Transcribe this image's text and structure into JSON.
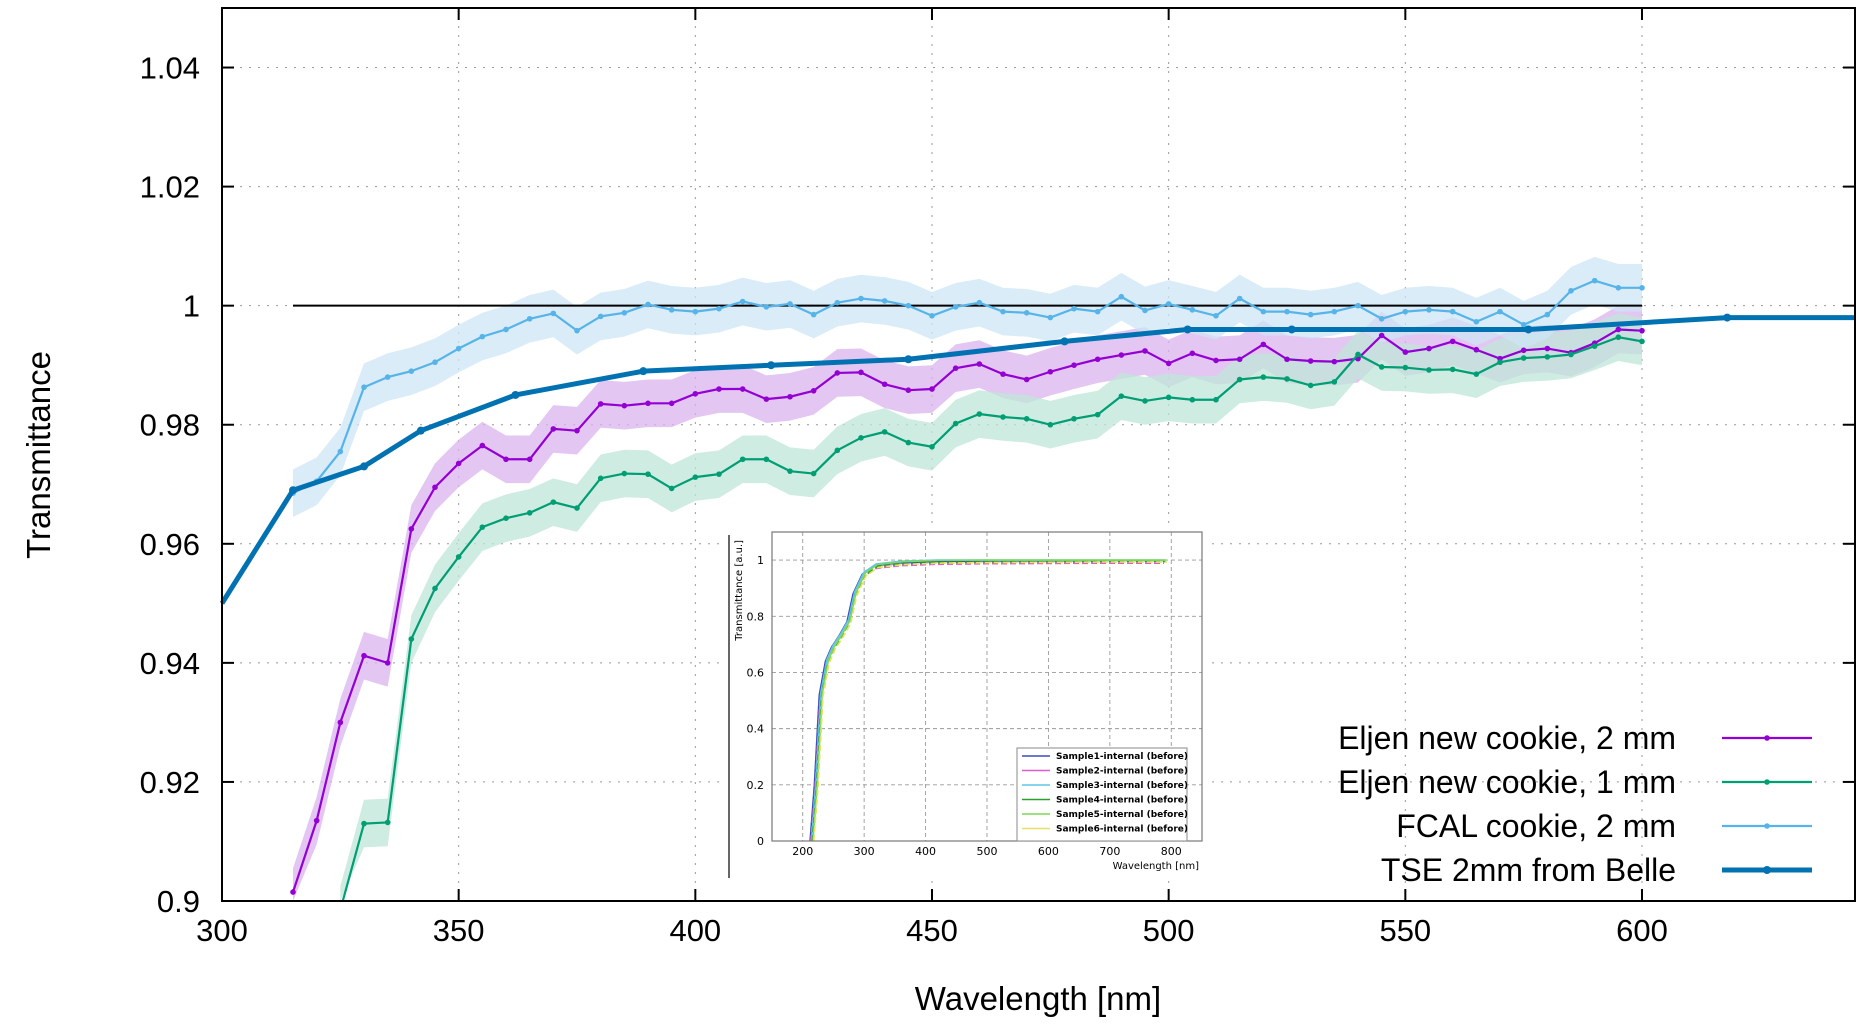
{
  "chart_data": [
    {
      "type": "line",
      "title": "",
      "xlabel": "Wavelength [nm]",
      "ylabel": "Transmittance",
      "xlim": [
        300,
        645
      ],
      "ylim": [
        0.9,
        1.05
      ],
      "x_ticks": [
        300,
        350,
        400,
        450,
        500,
        550,
        600
      ],
      "x_tick_labels": [
        "300",
        "350",
        "400",
        "450",
        "500",
        "550",
        "600"
      ],
      "y_ticks": [
        0.9,
        0.92,
        0.94,
        0.96,
        0.98,
        1.0,
        1.02,
        1.04
      ],
      "y_tick_labels": [
        "0.9",
        "0.92",
        "0.94",
        "0.96",
        "0.98",
        "1",
        "1.02",
        "1.04"
      ],
      "grid": true,
      "reference_line": {
        "y": 1.0,
        "x": [
          315,
          600
        ],
        "color": "#000000"
      },
      "legend_position": "bottom-right",
      "series": [
        {
          "name": "Eljen new cookie, 2 mm",
          "color": "#9400d3",
          "band_color": "#d9b3ee",
          "x": [
            315,
            320,
            325,
            330,
            335,
            340,
            345,
            350,
            355,
            360,
            365,
            370,
            375,
            380,
            385,
            390,
            395,
            400,
            405,
            410,
            415,
            420,
            425,
            430,
            435,
            440,
            445,
            450,
            455,
            460,
            465,
            470,
            475,
            480,
            485,
            490,
            495,
            500,
            505,
            510,
            515,
            520,
            525,
            530,
            535,
            540,
            545,
            550,
            555,
            560,
            565,
            570,
            575,
            580,
            585,
            590,
            595,
            600
          ],
          "y": [
            0.9015,
            0.9135,
            0.93,
            0.9412,
            0.94,
            0.9625,
            0.9695,
            0.9735,
            0.9765,
            0.9742,
            0.9742,
            0.9793,
            0.979,
            0.9835,
            0.9832,
            0.9836,
            0.9836,
            0.9852,
            0.986,
            0.986,
            0.9843,
            0.9847,
            0.9857,
            0.9887,
            0.9888,
            0.9868,
            0.9858,
            0.986,
            0.9895,
            0.9902,
            0.9885,
            0.9876,
            0.9889,
            0.99,
            0.991,
            0.9917,
            0.9924,
            0.9903,
            0.992,
            0.9908,
            0.991,
            0.9935,
            0.991,
            0.9907,
            0.9906,
            0.9911,
            0.995,
            0.9922,
            0.9928,
            0.994,
            0.9926,
            0.9911,
            0.9925,
            0.9928,
            0.9921,
            0.9937,
            0.996,
            0.9958
          ],
          "err": 0.004
        },
        {
          "name": "Eljen new cookie, 1 mm",
          "color": "#009e73",
          "band_color": "#bfe5d8",
          "x": [
            325,
            330,
            335,
            340,
            345,
            350,
            355,
            360,
            365,
            370,
            375,
            380,
            385,
            390,
            395,
            400,
            405,
            410,
            415,
            420,
            425,
            430,
            435,
            440,
            445,
            450,
            455,
            460,
            465,
            470,
            475,
            480,
            485,
            490,
            495,
            500,
            505,
            510,
            515,
            520,
            525,
            530,
            535,
            540,
            545,
            550,
            555,
            560,
            565,
            570,
            575,
            580,
            585,
            590,
            595,
            600
          ],
          "y": [
            0.8985,
            0.913,
            0.9132,
            0.944,
            0.9525,
            0.9578,
            0.9628,
            0.9643,
            0.9652,
            0.967,
            0.966,
            0.971,
            0.9718,
            0.9717,
            0.9693,
            0.9712,
            0.9717,
            0.9742,
            0.9742,
            0.9722,
            0.9718,
            0.9757,
            0.9778,
            0.9788,
            0.977,
            0.9763,
            0.9802,
            0.9818,
            0.9813,
            0.981,
            0.98,
            0.981,
            0.9817,
            0.9848,
            0.984,
            0.9846,
            0.9842,
            0.9842,
            0.9876,
            0.988,
            0.9877,
            0.9866,
            0.9872,
            0.9918,
            0.9897,
            0.9896,
            0.9892,
            0.9893,
            0.9885,
            0.9905,
            0.9912,
            0.9914,
            0.9918,
            0.9932,
            0.9947,
            0.994
          ],
          "err": 0.004
        },
        {
          "name": "FCAL cookie, 2 mm",
          "color": "#56b4e9",
          "band_color": "#cde6f6",
          "x": [
            315,
            320,
            325,
            330,
            335,
            340,
            345,
            350,
            355,
            360,
            365,
            370,
            375,
            380,
            385,
            390,
            395,
            400,
            405,
            410,
            415,
            420,
            425,
            430,
            435,
            440,
            445,
            450,
            455,
            460,
            465,
            470,
            475,
            480,
            485,
            490,
            495,
            500,
            505,
            510,
            515,
            520,
            525,
            530,
            535,
            540,
            545,
            550,
            555,
            560,
            565,
            570,
            575,
            580,
            585,
            590,
            595,
            600
          ],
          "y": [
            0.9685,
            0.9705,
            0.9755,
            0.9863,
            0.988,
            0.989,
            0.9905,
            0.9928,
            0.9948,
            0.996,
            0.9978,
            0.9987,
            0.9958,
            0.9982,
            0.9988,
            1.0002,
            0.9993,
            0.999,
            0.9995,
            1.0007,
            0.9998,
            1.0003,
            0.9985,
            1.0005,
            1.0012,
            1.0008,
            1.0,
            0.9983,
            0.9998,
            1.0005,
            0.999,
            0.9988,
            0.998,
            0.9995,
            0.999,
            1.0015,
            0.9992,
            1.0003,
            0.9993,
            0.9983,
            1.0012,
            0.999,
            0.999,
            0.9985,
            0.999,
            1.0,
            0.9978,
            0.999,
            0.9993,
            0.999,
            0.9973,
            0.999,
            0.9968,
            0.9985,
            1.0025,
            1.0042,
            1.003,
            1.003
          ],
          "err": 0.004
        },
        {
          "name": "TSE 2mm from Belle",
          "color": "#0072b2",
          "x": [
            300,
            315,
            330,
            342,
            362,
            389,
            416,
            445,
            478,
            504,
            526,
            576,
            618,
            645
          ],
          "y": [
            0.95,
            0.969,
            0.973,
            0.979,
            0.985,
            0.989,
            0.99,
            0.991,
            0.994,
            0.996,
            0.996,
            0.996,
            0.998,
            0.998
          ]
        }
      ]
    },
    {
      "type": "line",
      "title": "",
      "xlabel": "Wavelength [nm]",
      "ylabel": "Transmittance [a.u.]",
      "xlim": [
        150,
        850
      ],
      "ylim": [
        0,
        1.1
      ],
      "x_ticks": [
        200,
        300,
        400,
        500,
        600,
        700,
        800
      ],
      "x_tick_labels": [
        "200",
        "300",
        "400",
        "500",
        "600",
        "700",
        "800"
      ],
      "y_ticks": [
        0,
        0.2,
        0.4,
        0.6,
        0.8,
        1
      ],
      "y_tick_labels": [
        "0",
        "0.2",
        "0.4",
        "0.6",
        "0.8",
        "1"
      ],
      "grid": true,
      "legend_position": "bottom-right",
      "curve_x": [
        215,
        222,
        230,
        240,
        250,
        262,
        275,
        285,
        300,
        320,
        360,
        420,
        500,
        600,
        700,
        790
      ],
      "curve_y": [
        0,
        0.2,
        0.52,
        0.64,
        0.69,
        0.73,
        0.78,
        0.88,
        0.95,
        0.98,
        0.99,
        0.995,
        0.997,
        0.998,
        0.999,
        0.999
      ],
      "series": [
        {
          "name": "Sample1-internal (before)",
          "color": "#3b4cc0",
          "offset": 0.0
        },
        {
          "name": "Sample2-internal (before)",
          "color": "#e05ad0",
          "offset": -0.01
        },
        {
          "name": "Sample3-internal (before)",
          "color": "#5ec6e8",
          "offset": 0.006
        },
        {
          "name": "Sample4-internal (before)",
          "color": "#2ca02c",
          "offset": -0.004
        },
        {
          "name": "Sample5-internal (before)",
          "color": "#7ed957",
          "offset": 0.004
        },
        {
          "name": "Sample6-internal (before)",
          "color": "#e8e060",
          "offset": -0.006
        }
      ]
    }
  ]
}
